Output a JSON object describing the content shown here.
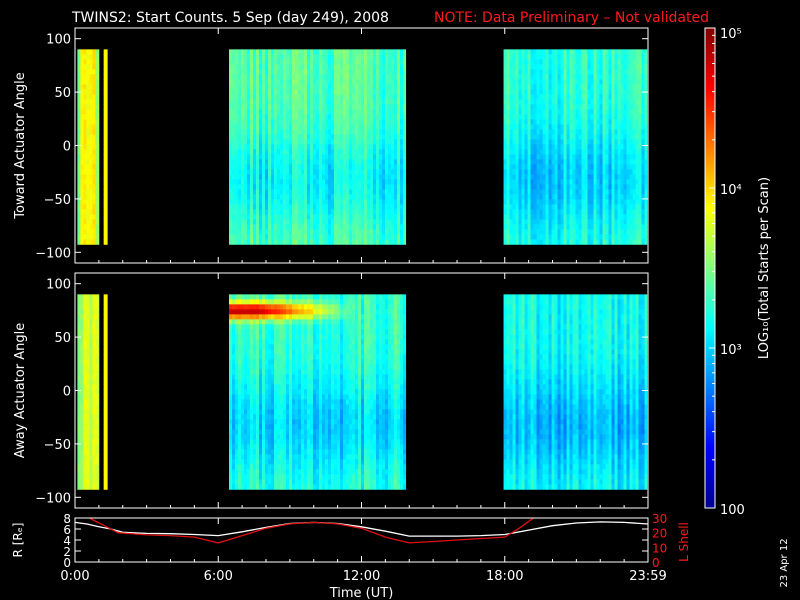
{
  "title": {
    "main": "TWINS2: Start Counts.  5 Sep (day 249), 2008",
    "note": "NOTE: Data Preliminary – Not validated"
  },
  "datestamp": "23 Apr 12",
  "colors": {
    "background": "#000000",
    "foreground": "#ffffff",
    "note": "#ff1a1a",
    "lshell": "#e01010"
  },
  "chart_data": [
    {
      "type": "heatmap",
      "name": "toward",
      "ylabel": "Toward Actuator Angle",
      "xlim": [
        0,
        24
      ],
      "ylim": [
        -110,
        110
      ],
      "yticks": [
        -100,
        -50,
        0,
        50,
        100
      ],
      "ytick_labels": [
        "−100",
        "−50",
        "0",
        "50",
        "100"
      ],
      "angle_range": [
        -90,
        90
      ],
      "blocks": [
        {
          "t_start": 0.1,
          "t_end": 1.0,
          "level": 3.75,
          "variation": "strong"
        },
        {
          "t_start": 1.2,
          "t_end": 1.35,
          "level": 3.9,
          "variation": "solid"
        },
        {
          "t_start": 6.45,
          "t_end": 13.85,
          "level": 3.35,
          "variation": "columns"
        },
        {
          "t_start": 17.95,
          "t_end": 23.95,
          "level": 3.25,
          "variation": "columns"
        }
      ],
      "hotspot": null
    },
    {
      "type": "heatmap",
      "name": "away",
      "ylabel": "Away Actuator Angle",
      "xlim": [
        0,
        24
      ],
      "ylim": [
        -110,
        110
      ],
      "yticks": [
        -100,
        -50,
        0,
        50,
        100
      ],
      "ytick_labels": [
        "−100",
        "−50",
        "0",
        "50",
        "100"
      ],
      "angle_range": [
        -90,
        90
      ],
      "blocks": [
        {
          "t_start": 0.1,
          "t_end": 1.0,
          "level": 3.75,
          "variation": "strong"
        },
        {
          "t_start": 1.2,
          "t_end": 1.35,
          "level": 3.9,
          "variation": "solid"
        },
        {
          "t_start": 6.45,
          "t_end": 13.85,
          "level": 3.25,
          "variation": "columns"
        },
        {
          "t_start": 17.95,
          "t_end": 23.95,
          "level": 3.15,
          "variation": "columns"
        }
      ],
      "hotspot": {
        "t_start": 6.45,
        "t_end": 10.5,
        "angle_center": 77,
        "angle_halfwidth": 8,
        "peak_level": 4.8
      }
    },
    {
      "type": "line",
      "name": "orbit",
      "ylabel": "R [Rₑ]",
      "ylabel_right": "L Shell",
      "ylim": [
        0,
        8
      ],
      "yticks": [
        0,
        2,
        4,
        6,
        8
      ],
      "ytick_labels": [
        "0",
        "2",
        "4",
        "6",
        "8"
      ],
      "ylim_right": [
        0,
        30
      ],
      "yticks_right": [
        0,
        10,
        20,
        30
      ],
      "ytick_labels_right": [
        "0",
        "10",
        "20",
        "30"
      ],
      "xlabel": "Time (UT)",
      "xticks": [
        0,
        6,
        12,
        18,
        24
      ],
      "xtick_labels": [
        "0:00",
        "6:00",
        "12:00",
        "18:00",
        "23:59"
      ],
      "series": [
        {
          "axis": "left",
          "color": "#ffffff",
          "x": [
            0,
            0.5,
            1,
            1.5,
            2,
            3,
            4,
            5,
            6,
            7,
            8,
            9,
            10,
            11,
            12,
            13,
            14,
            15,
            16,
            17,
            18,
            19,
            20,
            21,
            22,
            23,
            24
          ],
          "y": [
            7.2,
            6.9,
            6.4,
            6.0,
            5.4,
            5.2,
            5.15,
            5.0,
            4.8,
            5.5,
            6.3,
            7.0,
            7.2,
            7.0,
            6.4,
            5.6,
            4.7,
            4.7,
            4.7,
            4.8,
            5.0,
            5.8,
            6.6,
            7.1,
            7.3,
            7.2,
            6.9
          ]
        },
        {
          "axis": "right",
          "color": "#e01010",
          "x": [
            0.6,
            1.2,
            1.8,
            3,
            4,
            5,
            6,
            7,
            8,
            9,
            10,
            11,
            12,
            13,
            14,
            15,
            16,
            17,
            18,
            18.6,
            19.2
          ],
          "y": [
            30,
            25,
            20,
            18.5,
            18,
            17,
            13,
            18,
            23,
            26,
            27,
            26,
            23,
            17,
            13,
            14,
            15,
            16,
            17,
            23,
            30
          ]
        }
      ]
    }
  ],
  "colorbar": {
    "label": "LOG₁₀(Total Starts per Scan)",
    "log_range": [
      2,
      5
    ],
    "tick_labels": [
      "100",
      "10³",
      "10⁴",
      "10⁵"
    ],
    "tick_logs": [
      2,
      3,
      4,
      5
    ]
  }
}
